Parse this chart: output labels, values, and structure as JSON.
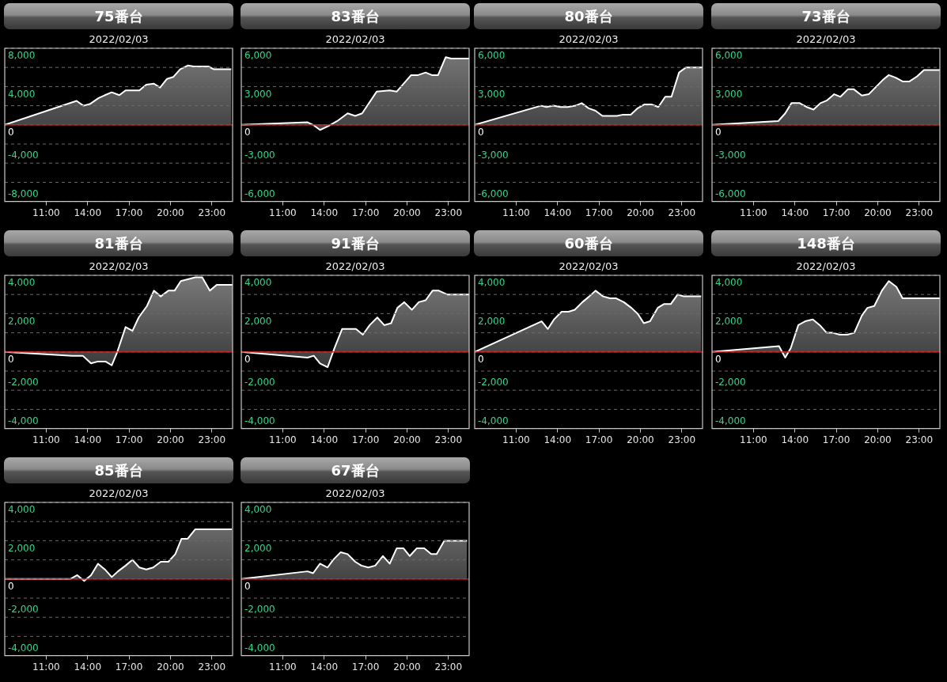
{
  "chart_data": [
    {
      "type": "area",
      "title": "75番台",
      "subtitle": "2022/02/03",
      "color": "#ffffff",
      "grid": "y",
      "x": [
        8,
        13.2,
        13.7,
        14.2,
        14.8,
        15.25,
        15.75,
        16.3,
        16.75,
        17.15,
        17.75,
        18.25,
        18.8,
        19.25,
        19.75,
        20.2,
        20.7,
        21.25,
        21.7,
        22.75,
        23.15,
        24.4
      ],
      "values": [
        0,
        2500,
        2000,
        2200,
        2800,
        3100,
        3400,
        3100,
        3600,
        3600,
        3600,
        4200,
        4300,
        3900,
        4800,
        5000,
        5800,
        6200,
        6100,
        6100,
        5800,
        5800
      ],
      "xlim": [
        8,
        24.5
      ],
      "xticks": [
        {
          "value": 11,
          "label": "11:00"
        },
        {
          "value": 14,
          "label": "14:00"
        },
        {
          "value": 17,
          "label": "17:00"
        },
        {
          "value": 20,
          "label": "20:00"
        },
        {
          "value": 23,
          "label": "23:00"
        }
      ],
      "ylim": [
        -8000,
        8000
      ],
      "yticks": [
        {
          "value": -8000,
          "label": "-8,000"
        },
        {
          "value": -6000,
          "label": null
        },
        {
          "value": -4000,
          "label": "-4,000"
        },
        {
          "value": -2000,
          "label": null
        },
        {
          "value": 0,
          "label": "0"
        },
        {
          "value": 2000,
          "label": null
        },
        {
          "value": 4000,
          "label": "4,000"
        },
        {
          "value": 6000,
          "label": null
        },
        {
          "value": 8000,
          "label": "8,000"
        }
      ],
      "ref_lines": [
        {
          "axis": "y",
          "value": 0,
          "color": "#e02020"
        }
      ]
    },
    {
      "type": "area",
      "title": "83番台",
      "subtitle": "2022/02/03",
      "color": "#ffffff",
      "grid": "y",
      "x": [
        8,
        12.8,
        13.2,
        13.7,
        14.3,
        14.95,
        15.7,
        16.25,
        16.75,
        17.8,
        18.75,
        19.25,
        20.3,
        20.8,
        21.35,
        21.8,
        22.25,
        22.8,
        23.2,
        24.5
      ],
      "values": [
        0,
        200,
        0,
        -400,
        -100,
        300,
        900,
        700,
        900,
        2600,
        2700,
        2600,
        3900,
        3900,
        4100,
        3900,
        3900,
        5300,
        5200,
        5200
      ],
      "xlim": [
        8,
        24.5
      ],
      "xticks": [
        {
          "value": 11,
          "label": "11:00"
        },
        {
          "value": 14,
          "label": "14:00"
        },
        {
          "value": 17,
          "label": "17:00"
        },
        {
          "value": 20,
          "label": "20:00"
        },
        {
          "value": 23,
          "label": "23:00"
        }
      ],
      "ylim": [
        -6000,
        6000
      ],
      "yticks": [
        {
          "value": -6000,
          "label": "-6,000"
        },
        {
          "value": -4500,
          "label": null
        },
        {
          "value": -3000,
          "label": "-3,000"
        },
        {
          "value": -1500,
          "label": null
        },
        {
          "value": 0,
          "label": "0"
        },
        {
          "value": 1500,
          "label": null
        },
        {
          "value": 3000,
          "label": "3,000"
        },
        {
          "value": 4500,
          "label": null
        },
        {
          "value": 6000,
          "label": "6,000"
        }
      ],
      "ref_lines": [
        {
          "axis": "y",
          "value": 0,
          "color": "#e02020"
        }
      ]
    },
    {
      "type": "area",
      "title": "80番台",
      "subtitle": "2022/02/03",
      "color": "#ffffff",
      "grid": "y",
      "x": [
        8,
        12.8,
        13.2,
        13.7,
        14.2,
        14.75,
        15.3,
        15.75,
        16.25,
        16.75,
        17.25,
        18.3,
        18.75,
        19.3,
        19.8,
        20.3,
        20.8,
        21.3,
        21.8,
        22.25,
        22.8,
        23.3,
        24.5
      ],
      "values": [
        0,
        1500,
        1400,
        1500,
        1400,
        1400,
        1500,
        1700,
        1300,
        1100,
        700,
        700,
        800,
        800,
        1300,
        1600,
        1600,
        1400,
        2200,
        2200,
        4100,
        4500,
        4500
      ],
      "xlim": [
        8,
        24.5
      ],
      "xticks": [
        {
          "value": 11,
          "label": "11:00"
        },
        {
          "value": 14,
          "label": "14:00"
        },
        {
          "value": 17,
          "label": "17:00"
        },
        {
          "value": 20,
          "label": "20:00"
        },
        {
          "value": 23,
          "label": "23:00"
        }
      ],
      "ylim": [
        -6000,
        6000
      ],
      "yticks": [
        {
          "value": -6000,
          "label": "-6,000"
        },
        {
          "value": -4500,
          "label": null
        },
        {
          "value": -3000,
          "label": "-3,000"
        },
        {
          "value": -1500,
          "label": null
        },
        {
          "value": 0,
          "label": "0"
        },
        {
          "value": 1500,
          "label": null
        },
        {
          "value": 3000,
          "label": "3,000"
        },
        {
          "value": 4500,
          "label": null
        },
        {
          "value": 6000,
          "label": "6,000"
        }
      ],
      "ref_lines": [
        {
          "axis": "y",
          "value": 0,
          "color": "#e02020"
        }
      ]
    },
    {
      "type": "area",
      "title": "73番台",
      "subtitle": "2022/02/03",
      "color": "#ffffff",
      "grid": "y",
      "x": [
        8,
        12.8,
        13.3,
        13.75,
        14.35,
        14.85,
        15.35,
        15.85,
        16.3,
        16.85,
        17.3,
        17.85,
        18.25,
        18.85,
        19.35,
        19.9,
        20.35,
        20.8,
        21.3,
        21.8,
        22.3,
        22.85,
        23.35,
        24.5
      ],
      "values": [
        0,
        300,
        900,
        1700,
        1700,
        1400,
        1200,
        1700,
        1900,
        2400,
        2200,
        2800,
        2800,
        2300,
        2400,
        3000,
        3500,
        3900,
        3700,
        3400,
        3400,
        3800,
        4300,
        4300
      ],
      "xlim": [
        8,
        24.5
      ],
      "xticks": [
        {
          "value": 11,
          "label": "11:00"
        },
        {
          "value": 14,
          "label": "14:00"
        },
        {
          "value": 17,
          "label": "17:00"
        },
        {
          "value": 20,
          "label": "20:00"
        },
        {
          "value": 23,
          "label": "23:00"
        }
      ],
      "ylim": [
        -6000,
        6000
      ],
      "yticks": [
        {
          "value": -6000,
          "label": "-6,000"
        },
        {
          "value": -4500,
          "label": null
        },
        {
          "value": -3000,
          "label": "-3,000"
        },
        {
          "value": -1500,
          "label": null
        },
        {
          "value": 0,
          "label": "0"
        },
        {
          "value": 1500,
          "label": null
        },
        {
          "value": 3000,
          "label": "3,000"
        },
        {
          "value": 4500,
          "label": null
        },
        {
          "value": 6000,
          "label": "6,000"
        }
      ],
      "ref_lines": [
        {
          "axis": "y",
          "value": 0,
          "color": "#e02020"
        }
      ]
    },
    {
      "type": "area",
      "title": "81番台",
      "subtitle": "2022/02/03",
      "color": "#ffffff",
      "grid": "y",
      "x": [
        8,
        12.9,
        13.65,
        14.25,
        14.75,
        15.3,
        15.75,
        16.15,
        16.75,
        17.25,
        17.7,
        18.3,
        18.8,
        19.3,
        19.85,
        20.3,
        20.75,
        21.8,
        22.3,
        22.85,
        23.35,
        24.5
      ],
      "values": [
        0,
        -200,
        -200,
        -600,
        -500,
        -500,
        -700,
        0,
        1300,
        1100,
        1800,
        2400,
        3200,
        2900,
        3200,
        3200,
        3700,
        3900,
        3900,
        3200,
        3500,
        3500
      ],
      "xlim": [
        8,
        24.5
      ],
      "xticks": [
        {
          "value": 11,
          "label": "11:00"
        },
        {
          "value": 14,
          "label": "14:00"
        },
        {
          "value": 17,
          "label": "17:00"
        },
        {
          "value": 20,
          "label": "20:00"
        },
        {
          "value": 23,
          "label": "23:00"
        }
      ],
      "ylim": [
        -4000,
        4000
      ],
      "yticks": [
        {
          "value": -4000,
          "label": "-4,000"
        },
        {
          "value": -3000,
          "label": null
        },
        {
          "value": -2000,
          "label": "-2,000"
        },
        {
          "value": -1000,
          "label": null
        },
        {
          "value": 0,
          "label": "0"
        },
        {
          "value": 1000,
          "label": null
        },
        {
          "value": 2000,
          "label": "2,000"
        },
        {
          "value": 3000,
          "label": null
        },
        {
          "value": 4000,
          "label": "4,000"
        }
      ],
      "ref_lines": [
        {
          "axis": "y",
          "value": 0,
          "color": "#e02020"
        }
      ]
    },
    {
      "type": "area",
      "title": "91番台",
      "subtitle": "2022/02/03",
      "color": "#ffffff",
      "grid": "y",
      "x": [
        8,
        12.8,
        13.25,
        13.7,
        14.25,
        14.75,
        15.3,
        15.85,
        16.3,
        16.8,
        17.3,
        17.85,
        18.35,
        18.85,
        19.3,
        19.8,
        20.35,
        20.85,
        21.35,
        21.85,
        22.3,
        22.9,
        24.5
      ],
      "values": [
        0,
        -300,
        -200,
        -600,
        -800,
        200,
        1200,
        1200,
        1200,
        900,
        1400,
        1800,
        1400,
        1500,
        2300,
        2600,
        2200,
        2600,
        2700,
        3200,
        3200,
        3000,
        3000
      ],
      "xlim": [
        8,
        24.5
      ],
      "xticks": [
        {
          "value": 11,
          "label": "11:00"
        },
        {
          "value": 14,
          "label": "14:00"
        },
        {
          "value": 17,
          "label": "17:00"
        },
        {
          "value": 20,
          "label": "20:00"
        },
        {
          "value": 23,
          "label": "23:00"
        }
      ],
      "ylim": [
        -4000,
        4000
      ],
      "yticks": [
        {
          "value": -4000,
          "label": "-4,000"
        },
        {
          "value": -3000,
          "label": null
        },
        {
          "value": -2000,
          "label": "-2,000"
        },
        {
          "value": -1000,
          "label": null
        },
        {
          "value": 0,
          "label": "0"
        },
        {
          "value": 1000,
          "label": null
        },
        {
          "value": 2000,
          "label": "2,000"
        },
        {
          "value": 3000,
          "label": null
        },
        {
          "value": 4000,
          "label": "4,000"
        }
      ],
      "ref_lines": [
        {
          "axis": "y",
          "value": 0,
          "color": "#e02020"
        }
      ]
    },
    {
      "type": "area",
      "title": "60番台",
      "subtitle": "2022/02/03",
      "color": "#ffffff",
      "grid": "y",
      "x": [
        8,
        12.85,
        13.3,
        13.75,
        14.3,
        14.8,
        15.25,
        15.8,
        16.3,
        16.75,
        17.3,
        17.8,
        18.25,
        18.8,
        19.35,
        19.8,
        20.25,
        20.7,
        21.25,
        21.7,
        22.2,
        22.7,
        23.15,
        24.4
      ],
      "values": [
        0,
        1600,
        1200,
        1700,
        2100,
        2100,
        2200,
        2600,
        2900,
        3200,
        2900,
        2800,
        2800,
        2600,
        2300,
        2000,
        1500,
        1600,
        2300,
        2500,
        2500,
        3000,
        2900,
        2900
      ],
      "xlim": [
        8,
        24.5
      ],
      "xticks": [
        {
          "value": 11,
          "label": "11:00"
        },
        {
          "value": 14,
          "label": "14:00"
        },
        {
          "value": 17,
          "label": "17:00"
        },
        {
          "value": 20,
          "label": "20:00"
        },
        {
          "value": 23,
          "label": "23:00"
        }
      ],
      "ylim": [
        -4000,
        4000
      ],
      "yticks": [
        {
          "value": -4000,
          "label": "-4,000"
        },
        {
          "value": -3000,
          "label": null
        },
        {
          "value": -2000,
          "label": "-2,000"
        },
        {
          "value": -1000,
          "label": null
        },
        {
          "value": 0,
          "label": "0"
        },
        {
          "value": 1000,
          "label": null
        },
        {
          "value": 2000,
          "label": "2,000"
        },
        {
          "value": 3000,
          "label": null
        },
        {
          "value": 4000,
          "label": "4,000"
        }
      ],
      "ref_lines": [
        {
          "axis": "y",
          "value": 0,
          "color": "#e02020"
        }
      ]
    },
    {
      "type": "area",
      "title": "148番台",
      "subtitle": "2022/02/03",
      "color": "#ffffff",
      "grid": "y",
      "x": [
        8,
        12.85,
        13.3,
        13.7,
        14.25,
        14.75,
        15.3,
        15.8,
        16.3,
        16.75,
        17.25,
        17.8,
        18.3,
        18.85,
        19.25,
        19.75,
        20.3,
        20.8,
        21.35,
        21.8,
        22.3,
        22.8,
        24.5
      ],
      "values": [
        0,
        300,
        -300,
        200,
        1400,
        1600,
        1700,
        1400,
        1000,
        1000,
        900,
        900,
        1000,
        1900,
        2300,
        2400,
        3200,
        3700,
        3400,
        2800,
        2800,
        2800,
        2800
      ],
      "xlim": [
        8,
        24.5
      ],
      "xticks": [
        {
          "value": 11,
          "label": "11:00"
        },
        {
          "value": 14,
          "label": "14:00"
        },
        {
          "value": 17,
          "label": "17:00"
        },
        {
          "value": 20,
          "label": "20:00"
        },
        {
          "value": 23,
          "label": "23:00"
        }
      ],
      "ylim": [
        -4000,
        4000
      ],
      "yticks": [
        {
          "value": -4000,
          "label": "-4,000"
        },
        {
          "value": -3000,
          "label": null
        },
        {
          "value": -2000,
          "label": "-2,000"
        },
        {
          "value": -1000,
          "label": null
        },
        {
          "value": 0,
          "label": "0"
        },
        {
          "value": 1000,
          "label": null
        },
        {
          "value": 2000,
          "label": "2,000"
        },
        {
          "value": 3000,
          "label": null
        },
        {
          "value": 4000,
          "label": "4,000"
        }
      ],
      "ref_lines": [
        {
          "axis": "y",
          "value": 0,
          "color": "#e02020"
        }
      ]
    },
    {
      "type": "area",
      "title": "85番台",
      "subtitle": "2022/02/03",
      "color": "#ffffff",
      "grid": "y",
      "x": [
        8,
        12.75,
        13.25,
        13.75,
        14.25,
        14.75,
        15.25,
        15.75,
        16.2,
        16.75,
        17.25,
        17.75,
        18.25,
        18.75,
        19.3,
        19.85,
        20.35,
        20.8,
        21.25,
        21.8,
        22.8,
        24.45
      ],
      "values": [
        0,
        0,
        200,
        -100,
        200,
        800,
        500,
        100,
        400,
        700,
        1000,
        600,
        500,
        600,
        900,
        900,
        1300,
        2100,
        2100,
        2600,
        2600,
        2600
      ],
      "xlim": [
        8,
        24.5
      ],
      "xticks": [
        {
          "value": 11,
          "label": "11:00"
        },
        {
          "value": 14,
          "label": "14:00"
        },
        {
          "value": 17,
          "label": "17:00"
        },
        {
          "value": 20,
          "label": "20:00"
        },
        {
          "value": 23,
          "label": "23:00"
        }
      ],
      "ylim": [
        -4000,
        4000
      ],
      "yticks": [
        {
          "value": -4000,
          "label": "-4,000"
        },
        {
          "value": -3000,
          "label": null
        },
        {
          "value": -2000,
          "label": "-2,000"
        },
        {
          "value": -1000,
          "label": null
        },
        {
          "value": 0,
          "label": "0"
        },
        {
          "value": 1000,
          "label": null
        },
        {
          "value": 2000,
          "label": "2,000"
        },
        {
          "value": 3000,
          "label": null
        },
        {
          "value": 4000,
          "label": "4,000"
        }
      ],
      "ref_lines": [
        {
          "axis": "y",
          "value": 0,
          "color": "#e02020"
        }
      ]
    },
    {
      "type": "area",
      "title": "67番台",
      "subtitle": "2022/02/03",
      "color": "#ffffff",
      "grid": "y",
      "x": [
        8,
        12.8,
        13.2,
        13.7,
        14.25,
        14.65,
        15.2,
        15.7,
        16.25,
        16.7,
        17.2,
        17.7,
        18.25,
        18.75,
        19.25,
        19.75,
        20.2,
        20.7,
        21.25,
        21.75,
        22.15,
        22.7,
        24.35
      ],
      "values": [
        0,
        400,
        300,
        800,
        600,
        1000,
        1400,
        1300,
        900,
        700,
        600,
        700,
        1200,
        800,
        1600,
        1600,
        1200,
        1600,
        1600,
        1300,
        1300,
        2000,
        2000
      ],
      "xlim": [
        8,
        24.5
      ],
      "xticks": [
        {
          "value": 11,
          "label": "11:00"
        },
        {
          "value": 14,
          "label": "14:00"
        },
        {
          "value": 17,
          "label": "17:00"
        },
        {
          "value": 20,
          "label": "20:00"
        },
        {
          "value": 23,
          "label": "23:00"
        }
      ],
      "ylim": [
        -4000,
        4000
      ],
      "yticks": [
        {
          "value": -4000,
          "label": "-4,000"
        },
        {
          "value": -3000,
          "label": null
        },
        {
          "value": -2000,
          "label": "-2,000"
        },
        {
          "value": -1000,
          "label": null
        },
        {
          "value": 0,
          "label": "0"
        },
        {
          "value": 1000,
          "label": null
        },
        {
          "value": 2000,
          "label": "2,000"
        },
        {
          "value": 3000,
          "label": null
        },
        {
          "value": 4000,
          "label": "4,000"
        }
      ],
      "ref_lines": [
        {
          "axis": "y",
          "value": 0,
          "color": "#e02020"
        }
      ]
    }
  ]
}
